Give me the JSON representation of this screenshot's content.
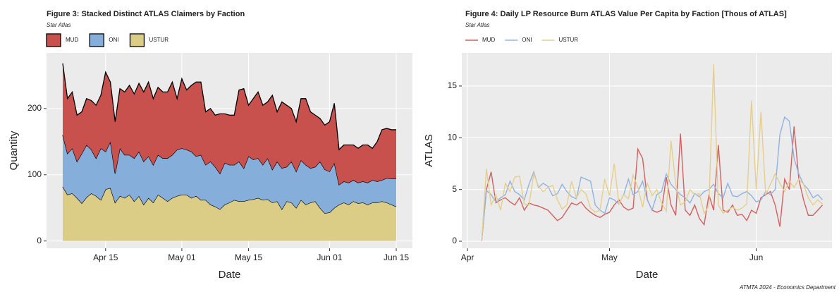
{
  "chart_data": [
    {
      "type": "stacked-area",
      "title": "Figure 3: Stacked Distinct ATLAS Claimers by Faction",
      "subtitle": "Star Atlas",
      "x_label": "Date",
      "y_label": "Quantity",
      "legend": "top-left",
      "grid": true,
      "x": [
        5,
        6,
        7,
        8,
        9,
        10,
        11,
        12,
        13,
        14,
        15,
        16,
        17,
        18,
        19,
        20,
        21,
        22,
        23,
        24,
        25,
        26,
        27,
        28,
        29,
        30,
        31,
        32,
        33,
        34,
        35,
        36,
        37,
        38,
        39,
        40,
        41,
        42,
        43,
        44,
        45,
        46,
        47,
        48,
        49,
        50,
        51,
        52,
        53,
        54,
        55,
        56,
        57,
        58,
        59,
        60,
        61,
        62,
        63,
        64,
        65,
        66,
        67,
        68,
        69,
        70,
        71,
        72,
        73,
        74,
        75
      ],
      "xlim": [
        1.6,
        78.4
      ],
      "xticks": [
        {
          "value": 14,
          "label": "Apr 15"
        },
        {
          "value": 30,
          "label": "May 01"
        },
        {
          "value": 44,
          "label": "May 15"
        },
        {
          "value": 61,
          "label": "Jun 01"
        },
        {
          "value": 75,
          "label": "Jun 15"
        }
      ],
      "ylim": [
        -11,
        284
      ],
      "yticks": [
        0,
        100,
        200
      ],
      "series": [
        {
          "name": "MUD",
          "color": "#c8504d",
          "values": [
            108,
            83,
            85,
            70,
            63,
            70,
            74,
            80,
            80,
            120,
            90,
            78,
            90,
            95,
            105,
            97,
            103,
            105,
            112,
            100,
            102,
            100,
            100,
            110,
            77,
            105,
            90,
            100,
            112,
            110,
            80,
            80,
            78,
            90,
            74,
            75,
            75,
            108,
            120,
            77,
            92,
            100,
            90,
            85,
            112,
            75,
            100,
            93,
            80,
            75,
            93,
            100,
            85,
            78,
            65,
            67,
            75,
            90,
            53,
            55,
            57,
            53,
            52,
            55,
            57,
            48,
            60,
            76,
            75,
            74,
            74
          ]
        },
        {
          "name": "ONI",
          "color": "#86aedb",
          "values": [
            78,
            62,
            68,
            55,
            75,
            79,
            66,
            57,
            78,
            57,
            70,
            44,
            72,
            65,
            60,
            65,
            67,
            65,
            63,
            57,
            60,
            60,
            65,
            65,
            70,
            70,
            68,
            70,
            60,
            68,
            53,
            65,
            60,
            54,
            63,
            57,
            53,
            60,
            50,
            66,
            60,
            60,
            53,
            62,
            50,
            60,
            62,
            52,
            62,
            55,
            60,
            60,
            52,
            52,
            70,
            66,
            62,
            68,
            30,
            32,
            33,
            32,
            31,
            32,
            33,
            34,
            32,
            32,
            37,
            39,
            42
          ]
        },
        {
          "name": "USTUR",
          "color": "#dccd86",
          "values": [
            82,
            70,
            72,
            65,
            57,
            66,
            72,
            68,
            62,
            78,
            80,
            58,
            68,
            65,
            70,
            60,
            68,
            55,
            65,
            58,
            70,
            65,
            60,
            65,
            68,
            70,
            70,
            65,
            68,
            62,
            62,
            55,
            52,
            48,
            55,
            58,
            62,
            60,
            60,
            62,
            63,
            65,
            62,
            63,
            58,
            60,
            48,
            60,
            58,
            50,
            62,
            55,
            58,
            60,
            50,
            42,
            43,
            50,
            55,
            58,
            55,
            60,
            57,
            58,
            55,
            58,
            58,
            60,
            58,
            55,
            52
          ]
        }
      ]
    },
    {
      "type": "line",
      "title": "Figure 4: Daily LP Resource Burn ATLAS Value Per Capita by Faction [Thous of ATLAS]",
      "subtitle": "Star Atlas",
      "x_label": "Date",
      "y_label": "ATLAS",
      "legend": "top-left",
      "grid": true,
      "x": [
        3,
        4,
        5,
        6,
        7,
        8,
        9,
        10,
        11,
        12,
        13,
        14,
        15,
        16,
        17,
        18,
        19,
        20,
        21,
        22,
        23,
        24,
        25,
        26,
        27,
        28,
        29,
        30,
        31,
        32,
        33,
        34,
        35,
        36,
        37,
        38,
        39,
        40,
        41,
        42,
        43,
        44,
        45,
        46,
        47,
        48,
        49,
        50,
        51,
        52,
        53,
        54,
        55,
        56,
        57,
        58,
        59,
        60,
        61,
        62,
        63,
        64,
        65,
        66,
        67,
        68,
        69,
        70,
        71,
        72,
        73,
        74,
        75
      ],
      "xlim": [
        -1.2,
        77
      ],
      "xticks": [
        {
          "value": 0,
          "label": "Apr"
        },
        {
          "value": 30,
          "label": "May"
        },
        {
          "value": 61,
          "label": "Jun"
        }
      ],
      "ylim": [
        -0.68,
        18.2
      ],
      "yticks": [
        0,
        5,
        10,
        15
      ],
      "series": [
        {
          "name": "MUD",
          "color": "#d65f5f",
          "values": [
            0,
            5,
            6.7,
            3.7,
            4,
            4.2,
            3.8,
            3.5,
            4.2,
            3,
            3.7,
            3.5,
            3.4,
            3.2,
            3,
            2.5,
            2,
            2.3,
            3,
            3.7,
            3.5,
            3.8,
            3.2,
            2.8,
            2.5,
            2.3,
            2.6,
            2.8,
            3.5,
            4,
            3.3,
            3,
            3.2,
            8.9,
            8,
            4,
            3,
            2.8,
            3,
            6.2,
            3.5,
            2.5,
            10.4,
            3,
            2.5,
            3.5,
            2.2,
            1.6,
            4.5,
            3,
            9.3,
            3,
            2.8,
            3.5,
            2.5,
            2.6,
            2,
            3,
            2.7,
            4.2,
            4.5,
            4.8,
            3.5,
            1.4,
            6,
            5,
            11.1,
            6,
            4,
            2.5,
            2.5,
            3,
            3.5
          ]
        },
        {
          "name": "ONI",
          "color": "#8fb3e3",
          "values": [
            0,
            4.9,
            4.5,
            3.8,
            4.2,
            4.5,
            5.8,
            4.8,
            4.5,
            4,
            5.5,
            6.7,
            5.2,
            5.6,
            5.3,
            4.4,
            4.6,
            5.5,
            4.8,
            4.3,
            4.1,
            6.2,
            6,
            5.8,
            3.5,
            3,
            2.7,
            4.2,
            4,
            3.6,
            4.5,
            6,
            4.5,
            4.8,
            5.8,
            4,
            3,
            4.5,
            4.8,
            6.5,
            5.5,
            5,
            4.5,
            4.2,
            3.7,
            4.6,
            4.3,
            4.8,
            5,
            5.5,
            4.6,
            4.2,
            5.6,
            4.4,
            4.3,
            4.6,
            4.8,
            4.4,
            3.8,
            4,
            4.8,
            4.5,
            5,
            10.3,
            12,
            11.6,
            8,
            6.5,
            5.5,
            5,
            4.2,
            4.5,
            4
          ]
        },
        {
          "name": "USTUR",
          "color": "#e6cf8a",
          "values": [
            0,
            7,
            3.5,
            4.5,
            3,
            5.6,
            4.8,
            6.2,
            6.3,
            3.6,
            3.5,
            6.5,
            5.3,
            4.8,
            5.2,
            5.4,
            4,
            3.1,
            3.5,
            5.8,
            4.2,
            5,
            4.6,
            3.2,
            2.8,
            3,
            6,
            4.4,
            7.5,
            3.6,
            4.5,
            4.1,
            6.4,
            5.2,
            3.3,
            5.6,
            4.4,
            5,
            3.7,
            2.9,
            9.7,
            5.5,
            3.5,
            3.8,
            5,
            4.5,
            4.6,
            2.7,
            3.4,
            17.1,
            3.5,
            2.7,
            3,
            3.3,
            3,
            3.2,
            3.6,
            13.6,
            5,
            12.5,
            4.5,
            5.5,
            6.5,
            5.6,
            4.8,
            5.8,
            5.2,
            6,
            5.5,
            4.2,
            3.5,
            4,
            3.6
          ]
        }
      ]
    }
  ],
  "caption": "ATMTA 2024 - Economics Department"
}
